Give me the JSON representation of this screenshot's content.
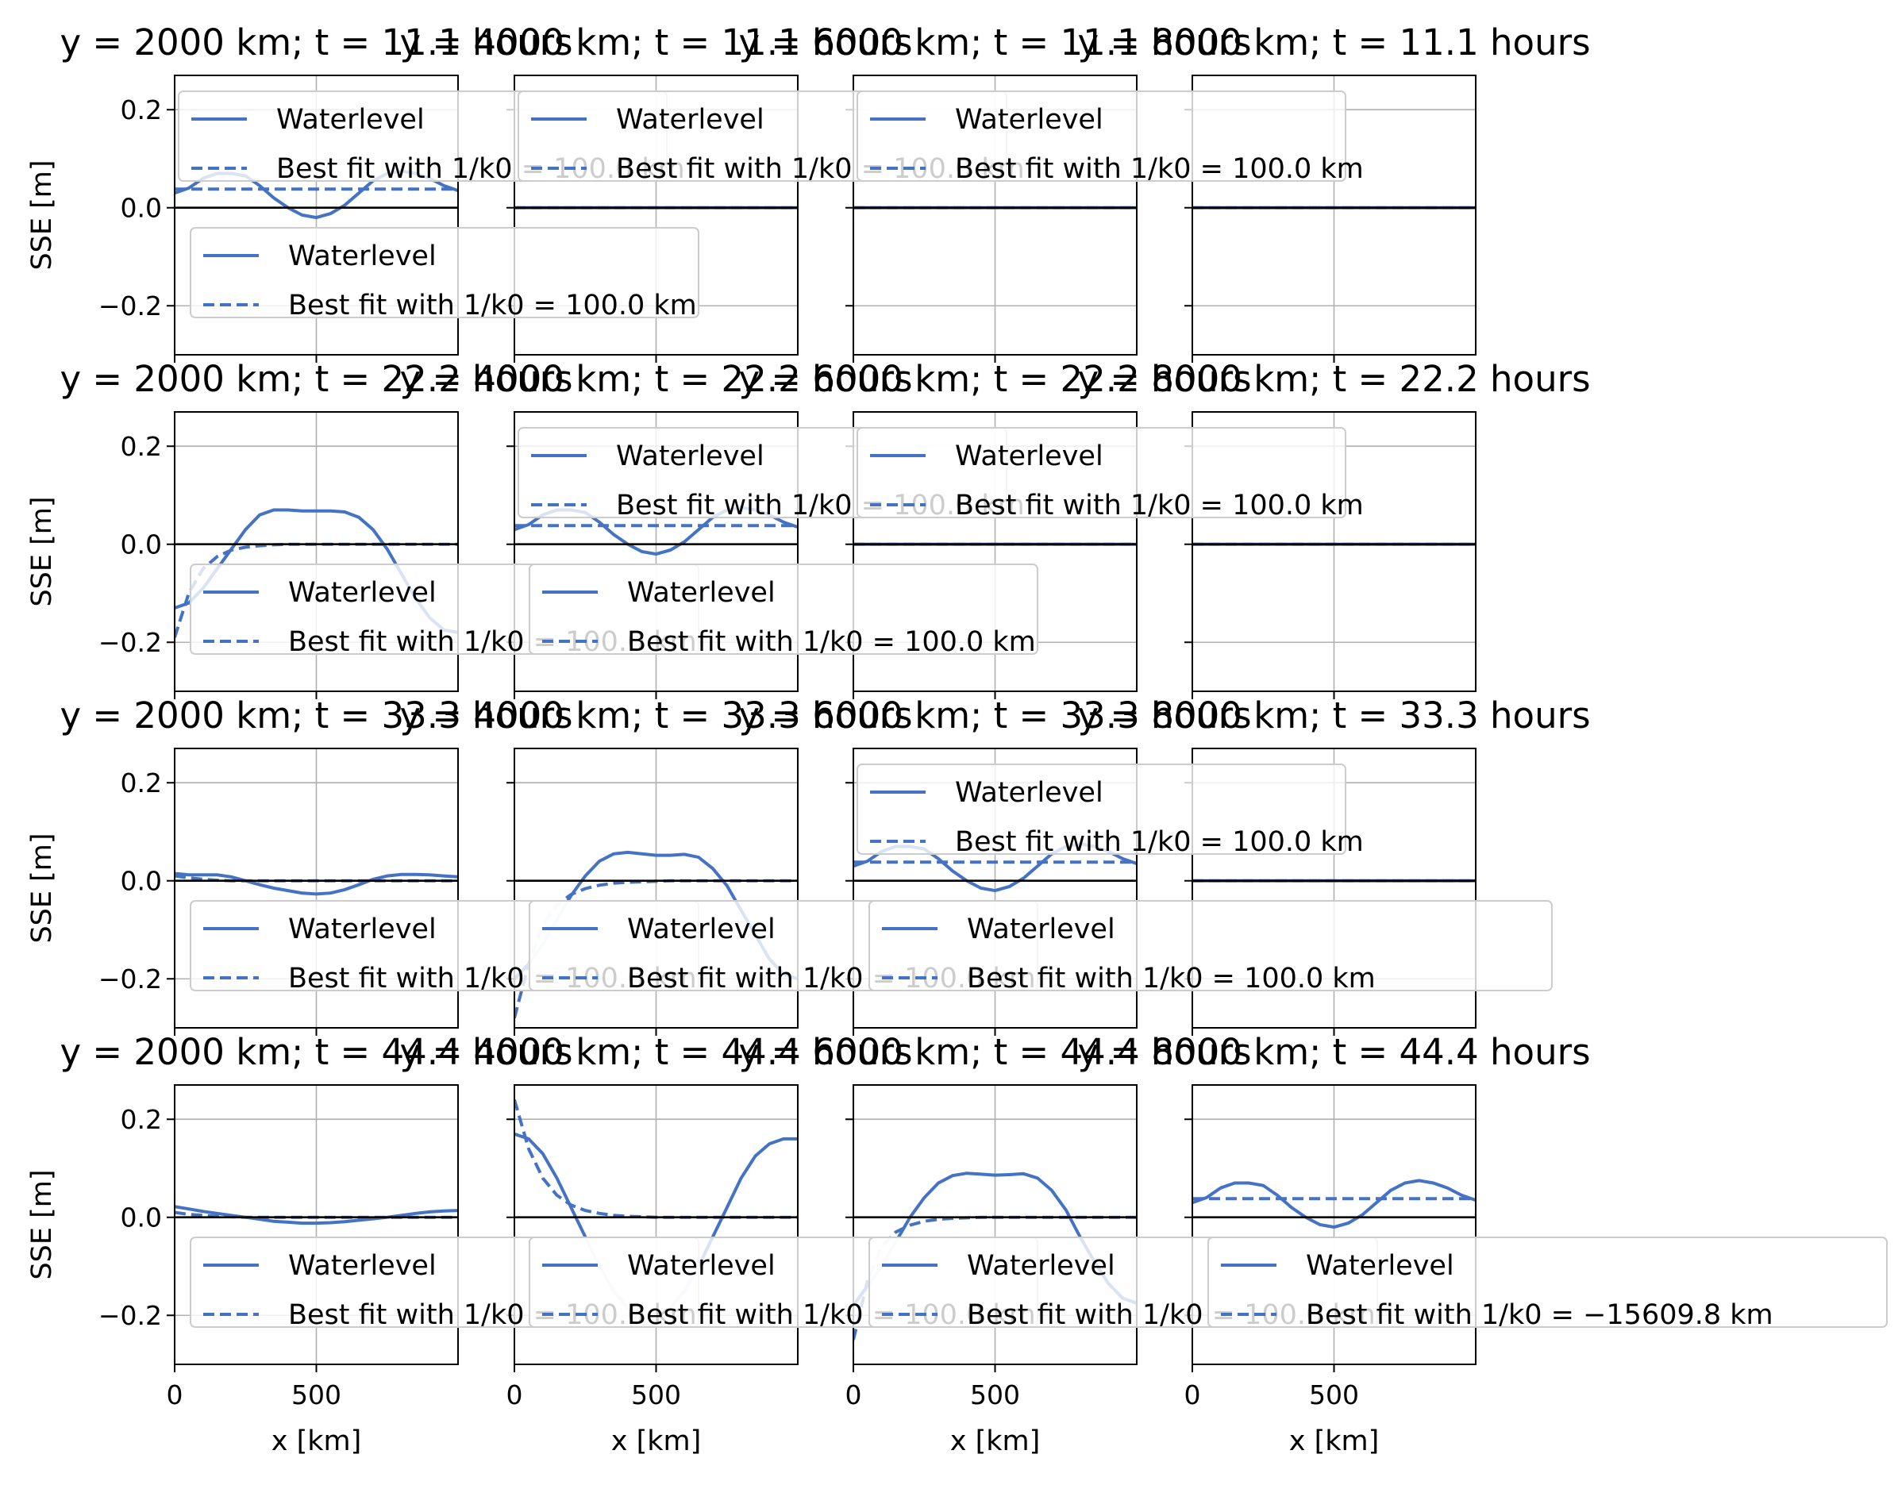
{
  "figure": {
    "ylabel": "SSE [m]",
    "xlabel": "x [km]",
    "x_ticks": [
      "0",
      "500"
    ],
    "y_ticks": [
      "0.2",
      "0.0",
      "−0.2"
    ],
    "line_color": "#4472c4",
    "zero_line_color": "#000000",
    "grid": true,
    "xlim": [
      0,
      1000
    ],
    "ylim": [
      -0.3,
      0.27
    ]
  },
  "chart_data": {
    "type": "line",
    "layout": "4x4 grid of subplots; rows share t, columns share y",
    "titles": [
      [
        "y = 2000 km; t = 11.1 hours",
        "y = 4000 km; t = 11.1 hours",
        "y = 6000 km; t = 11.1 hours",
        "y = 8000 km; t = 11.1 hours"
      ],
      [
        "y = 2000 km; t = 22.2 hours",
        "y = 4000 km; t = 22.2 hours",
        "y = 6000 km; t = 22.2 hours",
        "y = 8000 km; t = 22.2 hours"
      ],
      [
        "y = 2000 km; t = 33.3 hours",
        "y = 4000 km; t = 33.3 hours",
        "y = 6000 km; t = 33.3 hours",
        "y = 8000 km; t = 33.3 hours"
      ],
      [
        "y = 2000 km; t = 44.4 hours",
        "y = 4000 km; t = 44.4 hours",
        "y = 6000 km; t = 44.4 hours",
        "y = 8000 km; t = 44.4 hours"
      ]
    ],
    "legend_labels": [
      "Waterlevel",
      "Best fit with 1/k0 = 100.0 km",
      "Best fit with 1/k0 = −15609.8 km"
    ],
    "x": [
      0,
      50,
      100,
      150,
      200,
      250,
      300,
      350,
      400,
      450,
      500,
      550,
      600,
      650,
      700,
      750,
      800,
      850,
      900,
      950,
      1000
    ],
    "series": {
      "A": {
        "waterlevel": [
          0.03,
          0.04,
          0.06,
          0.07,
          0.07,
          0.065,
          0.045,
          0.02,
          0.0,
          -0.015,
          -0.02,
          -0.012,
          0.005,
          0.03,
          0.055,
          0.07,
          0.075,
          0.07,
          0.06,
          0.045,
          0.035
        ],
        "best_fit": [
          0.038,
          0.038,
          0.038,
          0.038,
          0.038,
          0.038,
          0.038,
          0.038,
          0.038,
          0.038,
          0.038,
          0.038,
          0.038,
          0.038,
          0.038,
          0.038,
          0.038,
          0.038,
          0.038,
          0.038,
          0.038
        ]
      },
      "B": {
        "waterlevel": [
          -0.13,
          -0.12,
          -0.09,
          -0.05,
          -0.01,
          0.03,
          0.06,
          0.07,
          0.07,
          0.068,
          0.068,
          0.068,
          0.066,
          0.055,
          0.03,
          -0.01,
          -0.06,
          -0.11,
          -0.15,
          -0.175,
          -0.18
        ],
        "best_fit": [
          -0.19,
          -0.1,
          -0.05,
          -0.025,
          -0.012,
          -0.006,
          -0.003,
          -0.001,
          0.0,
          0.0,
          0.0,
          0.0,
          0.0,
          0.0,
          0.0,
          0.0,
          0.0,
          0.0,
          0.0,
          0.0,
          0.0
        ]
      },
      "C": {
        "waterlevel": [
          0.015,
          0.012,
          0.012,
          0.012,
          0.008,
          0.0,
          -0.008,
          -0.015,
          -0.02,
          -0.025,
          -0.027,
          -0.025,
          -0.018,
          -0.008,
          0.003,
          0.01,
          0.013,
          0.013,
          0.012,
          0.01,
          0.008
        ],
        "best_fit": [
          0.01,
          0.006,
          0.003,
          0.001,
          0.0,
          0.0,
          0.0,
          0.0,
          0.0,
          0.0,
          0.0,
          0.0,
          0.0,
          0.0,
          0.0,
          0.0,
          0.0,
          0.0,
          0.0,
          0.0,
          0.0
        ]
      },
      "D": {
        "waterlevel": [
          -0.2,
          -0.17,
          -0.13,
          -0.08,
          -0.03,
          0.01,
          0.04,
          0.055,
          0.058,
          0.055,
          0.052,
          0.052,
          0.054,
          0.048,
          0.025,
          -0.01,
          -0.06,
          -0.11,
          -0.16,
          -0.19,
          -0.2
        ],
        "best_fit": [
          -0.28,
          -0.17,
          -0.09,
          -0.05,
          -0.028,
          -0.016,
          -0.009,
          -0.005,
          -0.003,
          -0.002,
          -0.001,
          0.0,
          0.0,
          0.0,
          0.0,
          0.0,
          0.0,
          0.0,
          0.0,
          0.0,
          0.0
        ]
      },
      "E": {
        "waterlevel": [
          0.022,
          0.017,
          0.012,
          0.008,
          0.004,
          0.0,
          -0.004,
          -0.008,
          -0.01,
          -0.012,
          -0.012,
          -0.011,
          -0.009,
          -0.006,
          -0.003,
          0.0,
          0.004,
          0.008,
          0.011,
          0.013,
          0.014
        ],
        "best_fit": [
          0.01,
          0.006,
          0.004,
          0.002,
          0.001,
          0.0,
          0.0,
          0.0,
          0.0,
          0.0,
          0.0,
          0.0,
          0.0,
          0.0,
          0.0,
          0.0,
          0.0,
          0.0,
          0.0,
          0.0,
          0.0
        ]
      },
      "F": {
        "waterlevel": [
          0.17,
          0.16,
          0.13,
          0.08,
          0.02,
          -0.04,
          -0.1,
          -0.15,
          -0.185,
          -0.2,
          -0.2,
          -0.185,
          -0.15,
          -0.1,
          -0.04,
          0.02,
          0.08,
          0.125,
          0.15,
          0.16,
          0.16
        ],
        "best_fit": [
          0.24,
          0.14,
          0.08,
          0.045,
          0.025,
          0.014,
          0.008,
          0.004,
          0.002,
          0.001,
          0.0,
          0.0,
          0.0,
          0.0,
          0.0,
          0.0,
          0.0,
          0.0,
          0.0,
          0.0,
          0.0
        ]
      },
      "G": {
        "waterlevel": [
          -0.18,
          -0.14,
          -0.1,
          -0.05,
          0.0,
          0.04,
          0.07,
          0.085,
          0.09,
          0.088,
          0.086,
          0.087,
          0.089,
          0.08,
          0.055,
          0.015,
          -0.04,
          -0.09,
          -0.135,
          -0.165,
          -0.175
        ],
        "best_fit": [
          -0.25,
          -0.13,
          -0.06,
          -0.03,
          -0.016,
          -0.008,
          -0.004,
          -0.002,
          -0.001,
          0.0,
          0.0,
          0.0,
          0.0,
          0.0,
          0.0,
          0.0,
          0.0,
          0.0,
          0.0,
          0.0,
          0.0
        ]
      },
      "Z": {
        "waterlevel": [
          0.0,
          0.0,
          0.0,
          0.0,
          0.0,
          0.0,
          0.0,
          0.0,
          0.0,
          0.0,
          0.0,
          0.0,
          0.0,
          0.0,
          0.0,
          0.0,
          0.0,
          0.0,
          0.0,
          0.0,
          0.0
        ],
        "best_fit": [
          0.0,
          0.0,
          0.0,
          0.0,
          0.0,
          0.0,
          0.0,
          0.0,
          0.0,
          0.0,
          0.0,
          0.0,
          0.0,
          0.0,
          0.0,
          0.0,
          0.0,
          0.0,
          0.0,
          0.0,
          0.0
        ]
      }
    },
    "panels": [
      [
        "A",
        "Z",
        "Z",
        "Z"
      ],
      [
        "B",
        "A",
        "Z",
        "Z"
      ],
      [
        "C",
        "D",
        "A",
        "Z"
      ],
      [
        "E",
        "F",
        "G",
        "A"
      ]
    ]
  }
}
